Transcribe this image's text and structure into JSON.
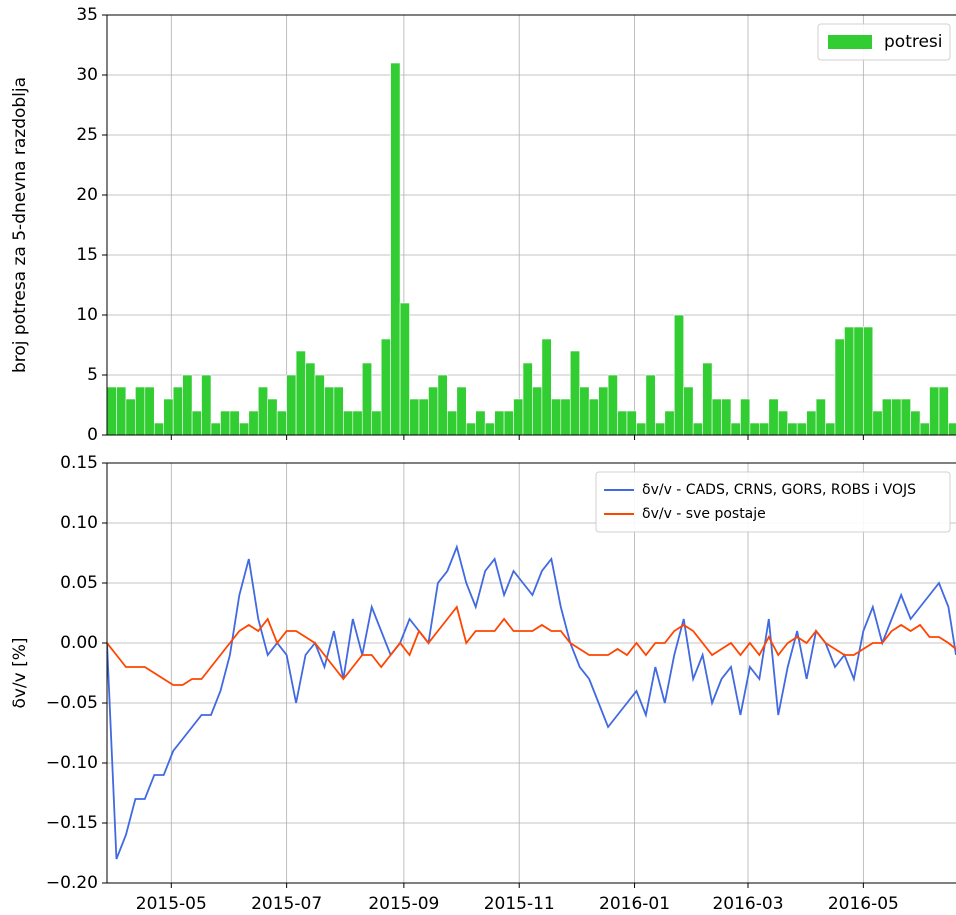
{
  "chart_data": [
    {
      "type": "histogram",
      "ylabel": "broj potresa za 5-dnevna razdoblja",
      "xlim": [
        "2015-03-28",
        "2016-06-19"
      ],
      "ylim": [
        0,
        35
      ],
      "yticks": [
        0,
        5,
        10,
        15,
        20,
        25,
        30,
        35
      ],
      "grid": true,
      "legend": "upper right",
      "bins": [
        "2015-03-28",
        "2015-04-02",
        "2015-04-07",
        "2015-04-12",
        "2015-04-17",
        "2015-04-22",
        "2015-04-27",
        "2015-05-02",
        "2015-05-07",
        "2015-05-12",
        "2015-05-17",
        "2015-05-22",
        "2015-05-27",
        "2015-06-01",
        "2015-06-06",
        "2015-06-11",
        "2015-06-16",
        "2015-06-21",
        "2015-06-26",
        "2015-07-01",
        "2015-07-06",
        "2015-07-11",
        "2015-07-16",
        "2015-07-21",
        "2015-07-26",
        "2015-07-31",
        "2015-08-05",
        "2015-08-10",
        "2015-08-15",
        "2015-08-20",
        "2015-08-25",
        "2015-08-30",
        "2015-09-04",
        "2015-09-09",
        "2015-09-14",
        "2015-09-19",
        "2015-09-24",
        "2015-09-29",
        "2015-10-04",
        "2015-10-09",
        "2015-10-14",
        "2015-10-19",
        "2015-10-24",
        "2015-10-29",
        "2015-11-03",
        "2015-11-08",
        "2015-11-13",
        "2015-11-18",
        "2015-11-23",
        "2015-11-28",
        "2015-12-03",
        "2015-12-08",
        "2015-12-13",
        "2015-12-18",
        "2015-12-23",
        "2015-12-28",
        "2016-01-02",
        "2016-01-07",
        "2016-01-12",
        "2016-01-17",
        "2016-01-22",
        "2016-01-27",
        "2016-02-01",
        "2016-02-06",
        "2016-02-11",
        "2016-02-16",
        "2016-02-21",
        "2016-02-26",
        "2016-03-02",
        "2016-03-07",
        "2016-03-12",
        "2016-03-17",
        "2016-03-22",
        "2016-03-27",
        "2016-04-01",
        "2016-04-06",
        "2016-04-11",
        "2016-04-16",
        "2016-04-21",
        "2016-04-26",
        "2016-05-01",
        "2016-05-06",
        "2016-05-11",
        "2016-05-16",
        "2016-05-21",
        "2016-05-26",
        "2016-05-31",
        "2016-06-05",
        "2016-06-10",
        "2016-06-15",
        "2016-06-20"
      ],
      "series": [
        {
          "name": "potresi",
          "color": "#32cd32",
          "values": [
            4,
            4,
            3,
            4,
            4,
            1,
            3,
            4,
            5,
            2,
            5,
            1,
            2,
            2,
            1,
            2,
            4,
            3,
            2,
            5,
            7,
            6,
            5,
            4,
            4,
            2,
            2,
            6,
            2,
            8,
            31,
            11,
            3,
            3,
            4,
            5,
            2,
            4,
            1,
            2,
            1,
            2,
            2,
            3,
            6,
            4,
            8,
            3,
            3,
            7,
            4,
            3,
            4,
            5,
            2,
            2,
            1,
            5,
            1,
            2,
            10,
            4,
            1,
            6,
            3,
            3,
            1,
            3,
            1,
            1,
            3,
            2,
            1,
            1,
            2,
            3,
            1,
            8,
            9,
            9,
            9,
            2,
            3,
            3,
            3,
            2,
            1,
            4,
            4,
            1
          ]
        }
      ]
    },
    {
      "type": "line",
      "ylabel": "δv/v [%]",
      "xlim": [
        "2015-03-28",
        "2016-06-19"
      ],
      "ylim": [
        -0.2,
        0.15
      ],
      "grid": true,
      "legend": "upper right",
      "xticks": [
        "2015-05",
        "2015-07",
        "2015-09",
        "2015-11",
        "2016-01",
        "2016-03",
        "2016-05"
      ],
      "yticks": [
        {
          "value": -0.2,
          "label": "−0.20"
        },
        {
          "value": -0.15,
          "label": "−0.15"
        },
        {
          "value": -0.1,
          "label": "−0.10"
        },
        {
          "value": -0.05,
          "label": "−0.05"
        },
        {
          "value": 0,
          "label": "0.00"
        },
        {
          "value": 0.05,
          "label": "0.05"
        },
        {
          "value": 0.1,
          "label": "0.10"
        },
        {
          "value": 0.15,
          "label": "0.15"
        }
      ],
      "x": [
        "2015-03-28",
        "2015-04-02",
        "2015-04-07",
        "2015-04-12",
        "2015-04-17",
        "2015-04-22",
        "2015-04-27",
        "2015-05-02",
        "2015-05-07",
        "2015-05-12",
        "2015-05-17",
        "2015-05-22",
        "2015-05-27",
        "2015-06-01",
        "2015-06-06",
        "2015-06-11",
        "2015-06-16",
        "2015-06-21",
        "2015-06-26",
        "2015-07-01",
        "2015-07-06",
        "2015-07-11",
        "2015-07-16",
        "2015-07-21",
        "2015-07-26",
        "2015-07-31",
        "2015-08-05",
        "2015-08-10",
        "2015-08-15",
        "2015-08-20",
        "2015-08-25",
        "2015-08-30",
        "2015-09-04",
        "2015-09-09",
        "2015-09-14",
        "2015-09-19",
        "2015-09-24",
        "2015-09-29",
        "2015-10-04",
        "2015-10-09",
        "2015-10-14",
        "2015-10-19",
        "2015-10-24",
        "2015-10-29",
        "2015-11-03",
        "2015-11-08",
        "2015-11-13",
        "2015-11-18",
        "2015-11-23",
        "2015-11-28",
        "2015-12-03",
        "2015-12-08",
        "2015-12-13",
        "2015-12-18",
        "2015-12-23",
        "2015-12-28",
        "2016-01-02",
        "2016-01-07",
        "2016-01-12",
        "2016-01-17",
        "2016-01-22",
        "2016-01-27",
        "2016-02-01",
        "2016-02-06",
        "2016-02-11",
        "2016-02-16",
        "2016-02-21",
        "2016-02-26",
        "2016-03-02",
        "2016-03-07",
        "2016-03-12",
        "2016-03-17",
        "2016-03-22",
        "2016-03-27",
        "2016-04-01",
        "2016-04-06",
        "2016-04-11",
        "2016-04-16",
        "2016-04-21",
        "2016-04-26",
        "2016-05-01",
        "2016-05-06",
        "2016-05-11",
        "2016-05-16",
        "2016-05-21",
        "2016-05-26",
        "2016-05-31",
        "2016-06-05",
        "2016-06-10",
        "2016-06-15",
        "2016-06-19"
      ],
      "series": [
        {
          "name": "δv/v - CADS, CRNS, GORS, ROBS i VOJS",
          "color": "#4169e1",
          "values": [
            0.0,
            -0.18,
            -0.16,
            -0.13,
            -0.13,
            -0.11,
            -0.11,
            -0.09,
            -0.08,
            -0.07,
            -0.06,
            -0.06,
            -0.04,
            -0.01,
            0.04,
            0.07,
            0.02,
            -0.01,
            0.0,
            -0.01,
            -0.05,
            -0.01,
            0.0,
            -0.02,
            0.01,
            -0.03,
            0.02,
            -0.01,
            0.03,
            0.01,
            -0.01,
            0.0,
            0.02,
            0.01,
            0.0,
            0.05,
            0.06,
            0.08,
            0.05,
            0.03,
            0.06,
            0.07,
            0.04,
            0.06,
            0.05,
            0.04,
            0.06,
            0.07,
            0.03,
            0.0,
            -0.02,
            -0.03,
            -0.05,
            -0.07,
            -0.06,
            -0.05,
            -0.04,
            -0.06,
            -0.02,
            -0.05,
            -0.01,
            0.02,
            -0.03,
            -0.01,
            -0.05,
            -0.03,
            -0.02,
            -0.06,
            -0.02,
            -0.03,
            0.02,
            -0.06,
            -0.02,
            0.01,
            -0.03,
            0.01,
            0.0,
            -0.02,
            -0.01,
            -0.03,
            0.01,
            0.03,
            0.0,
            0.02,
            0.04,
            0.02,
            0.03,
            0.04,
            0.05,
            0.03,
            -0.01
          ]
        },
        {
          "name": "δv/v - sve postaje",
          "color": "#ff4500",
          "values": [
            0.0,
            -0.01,
            -0.02,
            -0.02,
            -0.02,
            -0.025,
            -0.03,
            -0.035,
            -0.035,
            -0.03,
            -0.03,
            -0.02,
            -0.01,
            0.0,
            0.01,
            0.015,
            0.01,
            0.02,
            0.0,
            0.01,
            0.01,
            0.005,
            0.0,
            -0.01,
            -0.02,
            -0.03,
            -0.02,
            -0.01,
            -0.01,
            -0.02,
            -0.01,
            0.0,
            -0.01,
            0.01,
            0.0,
            0.01,
            0.02,
            0.03,
            0.0,
            0.01,
            0.01,
            0.01,
            0.02,
            0.01,
            0.01,
            0.01,
            0.015,
            0.01,
            0.01,
            0.0,
            -0.005,
            -0.01,
            -0.01,
            -0.01,
            -0.005,
            -0.01,
            0.0,
            -0.01,
            0.0,
            0.0,
            0.01,
            0.015,
            0.01,
            0.0,
            -0.01,
            -0.005,
            0.0,
            -0.01,
            0.0,
            -0.01,
            0.005,
            -0.01,
            0.0,
            0.005,
            0.0,
            0.01,
            0.0,
            -0.005,
            -0.01,
            -0.01,
            -0.005,
            0.0,
            0.0,
            0.01,
            0.015,
            0.01,
            0.015,
            0.005,
            0.005,
            0.0,
            -0.005
          ]
        }
      ]
    }
  ]
}
